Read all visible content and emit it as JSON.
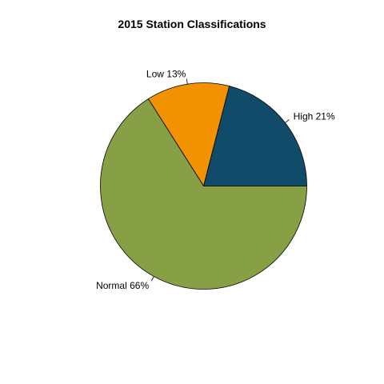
{
  "chart_data": {
    "type": "pie",
    "title": "2015 Station Classifications",
    "slices": [
      {
        "label": "High",
        "value": 21,
        "display": "High 21%",
        "color": "#114B6A"
      },
      {
        "label": "Low",
        "value": 13,
        "display": "Low 13%",
        "color": "#F39200"
      },
      {
        "label": "Normal",
        "value": 66,
        "display": "Normal 66%",
        "color": "#87A046"
      }
    ],
    "direction": "counterclockwise",
    "start": "3 o'clock"
  }
}
